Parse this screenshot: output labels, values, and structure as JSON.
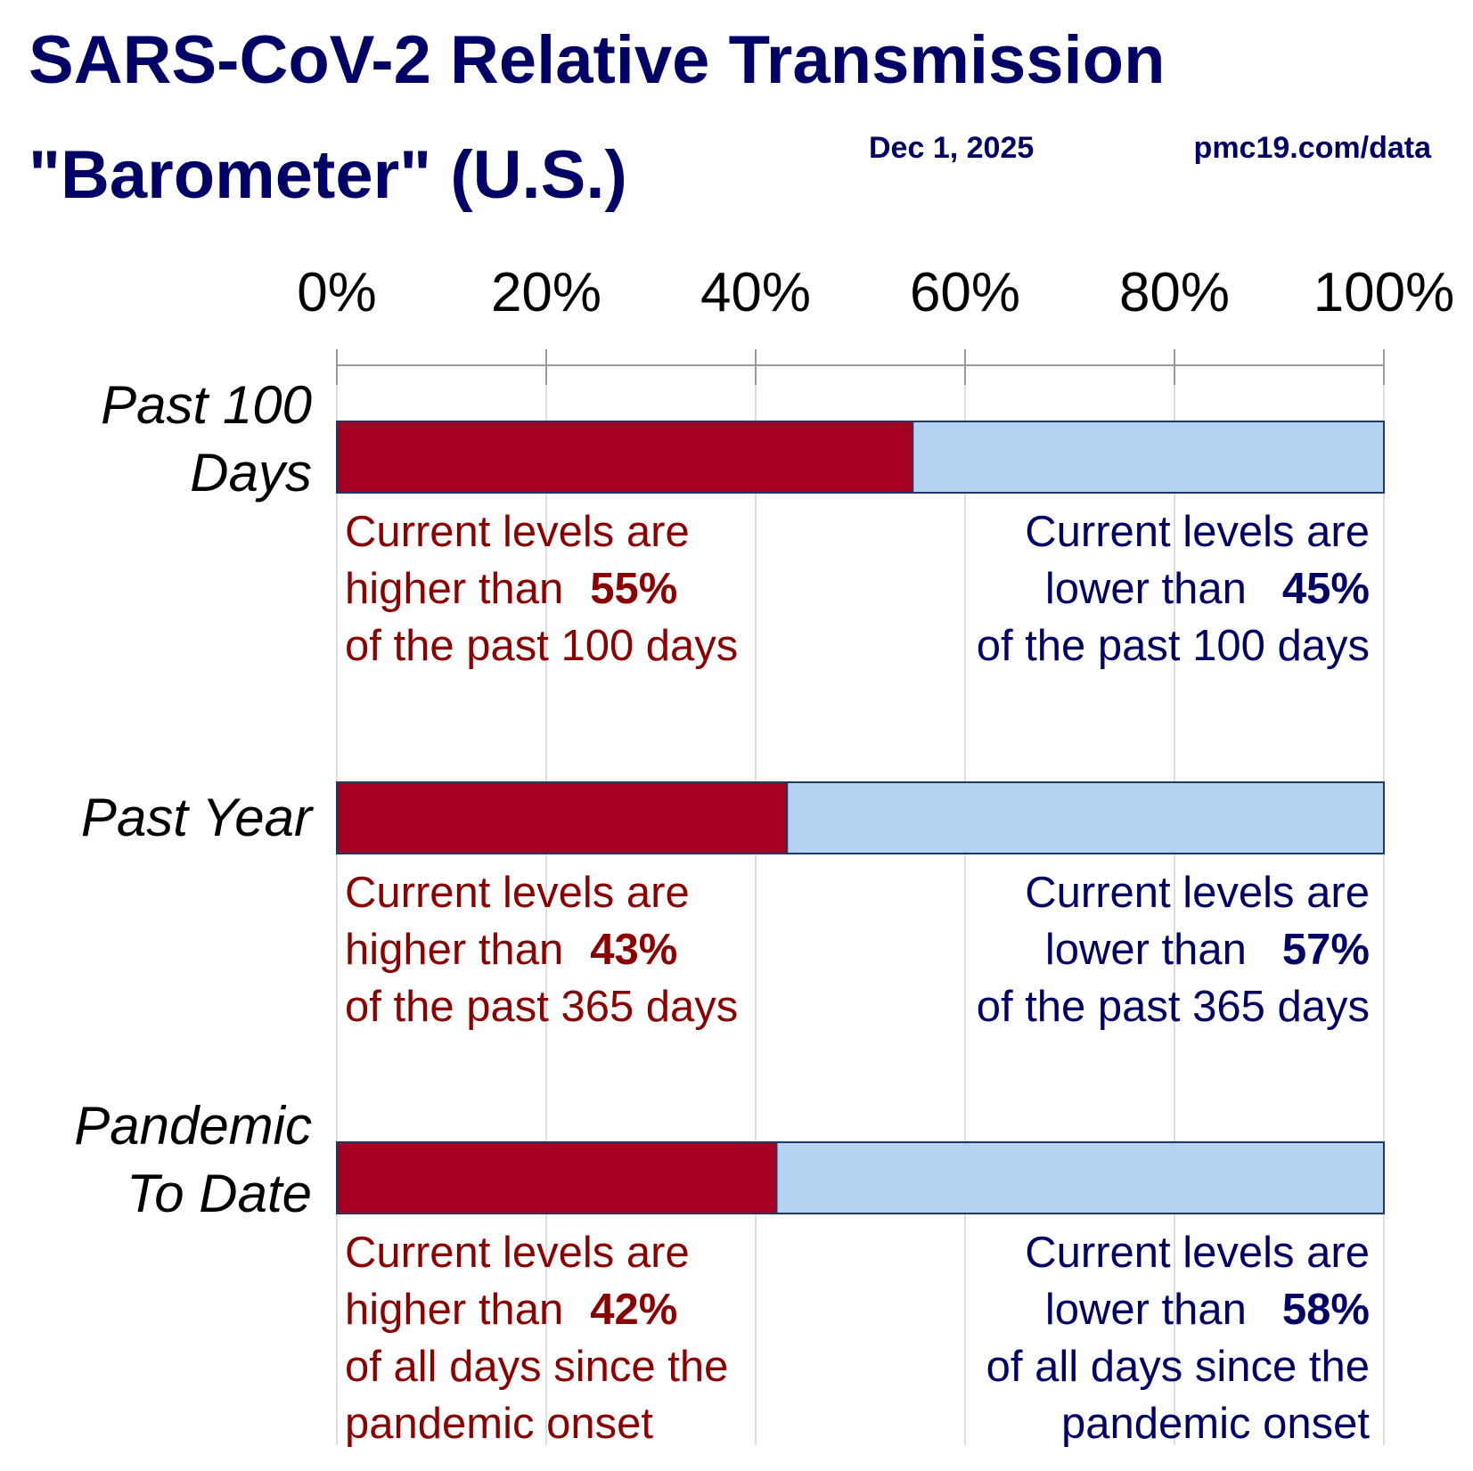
{
  "chart_data": {
    "type": "stacked_barh",
    "title": [
      "SARS-CoV-2 Relative Transmission",
      "\"Barometer\" (U.S.)"
    ],
    "date": "Dec 1, 2025",
    "source": "pmc19.com/data",
    "categories": [
      "Past 100 Days",
      "Past Year",
      "Pandemic To Date"
    ],
    "series": [
      {
        "color": "#a50021",
        "text_color": "#8b0000",
        "values": [
          55,
          43,
          42
        ],
        "value_labels": [
          "55%",
          "43%",
          "42%"
        ]
      },
      {
        "color": "#b4d2f2",
        "text_color": "#000066",
        "values": [
          45,
          57,
          58
        ],
        "value_labels": [
          "45%",
          "57%",
          "58%"
        ]
      }
    ],
    "annotations": [
      {
        "higher": {
          "lead": [
            "Current levels are",
            "higher than"
          ],
          "tail": [
            "of the past 100 days"
          ]
        },
        "lower": {
          "lead": [
            "Current levels are",
            "lower than"
          ],
          "tail": [
            "of the past 100 days"
          ]
        }
      },
      {
        "higher": {
          "lead": [
            "Current levels are",
            "higher than"
          ],
          "tail": [
            "of the past 365 days"
          ]
        },
        "lower": {
          "lead": [
            "Current levels are",
            "lower than"
          ],
          "tail": [
            "of the past 365 days"
          ]
        }
      },
      {
        "higher": {
          "lead": [
            "Current levels are",
            "higher than"
          ],
          "tail": [
            "of all days since the",
            "pandemic onset"
          ]
        },
        "lower": {
          "lead": [
            "Current levels are",
            "lower than"
          ],
          "tail": [
            "of all days since the",
            "pandemic onset"
          ]
        }
      }
    ],
    "xlim": [
      0,
      100
    ],
    "xticks": [
      {
        "value": 0,
        "label": "0%"
      },
      {
        "value": 20,
        "label": "20%"
      },
      {
        "value": 40,
        "label": "40%"
      },
      {
        "value": 60,
        "label": "60%"
      },
      {
        "value": 80,
        "label": "80%"
      },
      {
        "value": 100,
        "label": "100%"
      }
    ],
    "grid": true
  }
}
